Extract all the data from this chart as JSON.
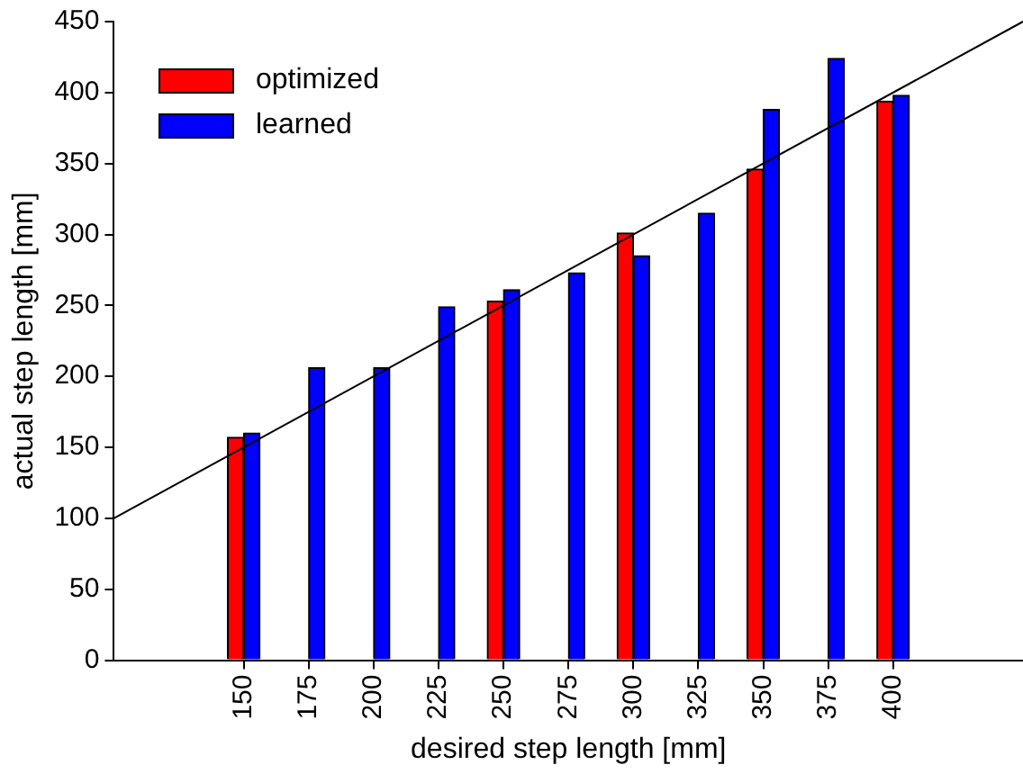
{
  "chart_data": {
    "type": "bar",
    "xlabel": "desired step length [mm]",
    "ylabel": "actual step length [mm]",
    "x": [
      150,
      175,
      200,
      225,
      250,
      275,
      300,
      325,
      350,
      375,
      400
    ],
    "series": [
      {
        "name": "optimized",
        "color": "#ff0000",
        "values": [
          157,
          null,
          null,
          null,
          253,
          null,
          301,
          null,
          346,
          null,
          394
        ]
      },
      {
        "name": "learned",
        "color": "#0000ff",
        "values": [
          160,
          206,
          206,
          249,
          261,
          273,
          285,
          315,
          388,
          424,
          398
        ]
      },
      {
        "type": "line",
        "color": "#000000",
        "x": [
          100,
          450
        ],
        "values": [
          100,
          450
        ]
      }
    ],
    "xlim": [
      100,
      450
    ],
    "xticks": [
      150,
      175,
      200,
      225,
      250,
      275,
      300,
      325,
      350,
      375,
      400
    ],
    "ylim": [
      0,
      450
    ],
    "yticks": [
      0,
      50,
      100,
      150,
      200,
      250,
      300,
      350,
      400,
      450
    ],
    "grid": false,
    "legend": "top left"
  }
}
